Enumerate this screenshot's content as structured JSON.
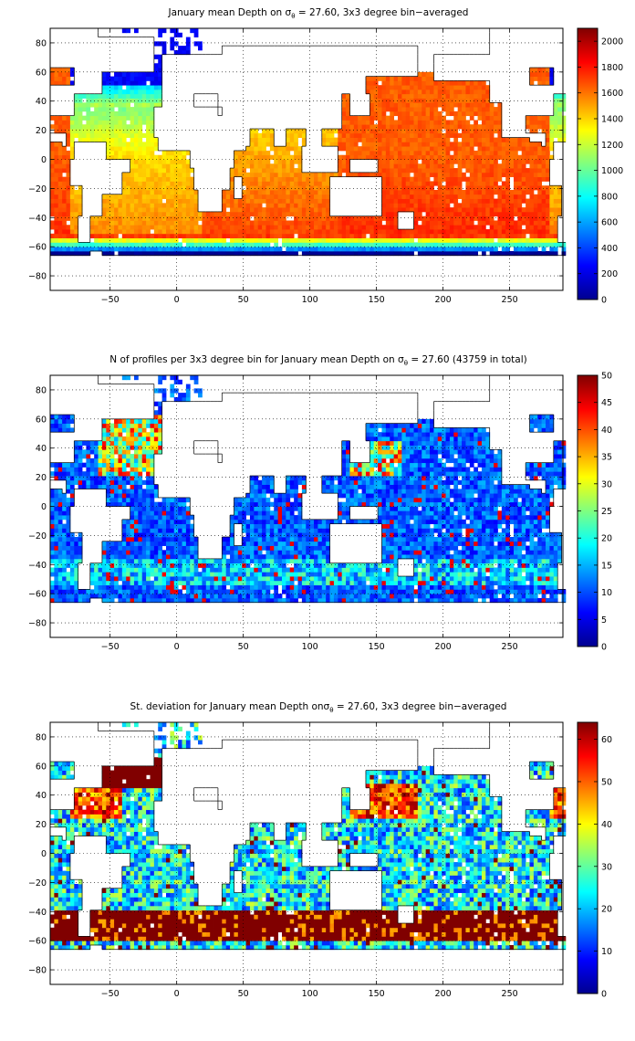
{
  "colormap": "jet",
  "land_color": "#ffffff",
  "panels": [
    {
      "title_pre": "January mean Depth on σ",
      "title_sub": "θ",
      "title_post": " = 27.60, 3x3 degree bin−averaged",
      "colorbar_ticks": [
        "0",
        "200",
        "400",
        "600",
        "800",
        "1000",
        "1200",
        "1400",
        "1600",
        "1800",
        "2000"
      ]
    },
    {
      "title_pre": "N of profiles per 3x3 degree bin for January mean Depth on σ",
      "title_sub": "θ",
      "title_post": " = 27.60 (43759 in total)",
      "colorbar_ticks": [
        "0",
        "5",
        "10",
        "15",
        "20",
        "25",
        "30",
        "35",
        "40",
        "45",
        "50"
      ]
    },
    {
      "title_pre": "St. deviation for January mean Depth onσ",
      "title_sub": "θ",
      "title_post": " = 27.60, 3x3 degree bin−averaged",
      "colorbar_ticks": [
        "0",
        "10",
        "20",
        "30",
        "40",
        "50",
        "60"
      ]
    }
  ],
  "chart_data": [
    {
      "type": "heatmap",
      "title": "January mean Depth on σθ = 27.60, 3x3 degree bin−averaged",
      "xlim": [
        -95,
        290
      ],
      "ylim": [
        -90,
        90
      ],
      "x_ticks": [
        -50,
        0,
        50,
        100,
        150,
        200,
        250
      ],
      "y_ticks": [
        -80,
        -60,
        -40,
        -20,
        0,
        20,
        40,
        60,
        80
      ],
      "grid": true,
      "bin_size_deg": 3,
      "color_range": [
        0,
        2100
      ],
      "colorbar_ticks": [
        0,
        200,
        400,
        600,
        800,
        1000,
        1200,
        1400,
        1600,
        1800,
        2000
      ],
      "approx_values_by_region": [
        {
          "region": "North Pacific",
          "value": 1650
        },
        {
          "region": "South Pacific",
          "value": 1700
        },
        {
          "region": "Indian Ocean",
          "value": 1550
        },
        {
          "region": "South Atlantic",
          "value": 1450
        },
        {
          "region": "North Atlantic subtropics",
          "value": 1050
        },
        {
          "region": "North Atlantic subpolar",
          "value": 300
        },
        {
          "region": "Southern Ocean near 60S",
          "value": 250
        },
        {
          "region": "Antarctic margin",
          "value": 60
        }
      ]
    },
    {
      "type": "heatmap",
      "title": "N of profiles per 3x3 degree bin for January mean Depth on σθ = 27.60 (43759 in total)",
      "total_profiles": 43759,
      "xlim": [
        -95,
        290
      ],
      "ylim": [
        -90,
        90
      ],
      "x_ticks": [
        -50,
        0,
        50,
        100,
        150,
        200,
        250
      ],
      "y_ticks": [
        -80,
        -60,
        -40,
        -20,
        0,
        20,
        40,
        60,
        80
      ],
      "grid": true,
      "color_range": [
        0,
        50
      ],
      "colorbar_ticks": [
        0,
        5,
        10,
        15,
        20,
        25,
        30,
        35,
        40,
        45,
        50
      ],
      "approx_values_by_region": [
        {
          "region": "Open ocean typical",
          "value": 7
        },
        {
          "region": "North Atlantic",
          "value": 25
        },
        {
          "region": "Kuroshio region",
          "value": 35
        },
        {
          "region": "Southern Ocean band 40-50S",
          "value": 15
        }
      ]
    },
    {
      "type": "heatmap",
      "title": "St. deviation for January mean Depth onσθ = 27.60, 3x3 degree bin−averaged",
      "xlim": [
        -95,
        290
      ],
      "ylim": [
        -90,
        90
      ],
      "x_ticks": [
        -50,
        0,
        50,
        100,
        150,
        200,
        250
      ],
      "y_ticks": [
        -80,
        -60,
        -40,
        -20,
        0,
        20,
        40,
        60,
        80
      ],
      "grid": true,
      "color_range": [
        0,
        64
      ],
      "colorbar_ticks": [
        0,
        10,
        20,
        30,
        40,
        50,
        60
      ],
      "approx_values_by_region": [
        {
          "region": "Tropics typical",
          "value": 22
        },
        {
          "region": "Subpolar North Atlantic",
          "value": 64
        },
        {
          "region": "Antarctic Circumpolar Current",
          "value": 64
        },
        {
          "region": "Kuroshio Extension",
          "value": 55
        }
      ]
    }
  ]
}
